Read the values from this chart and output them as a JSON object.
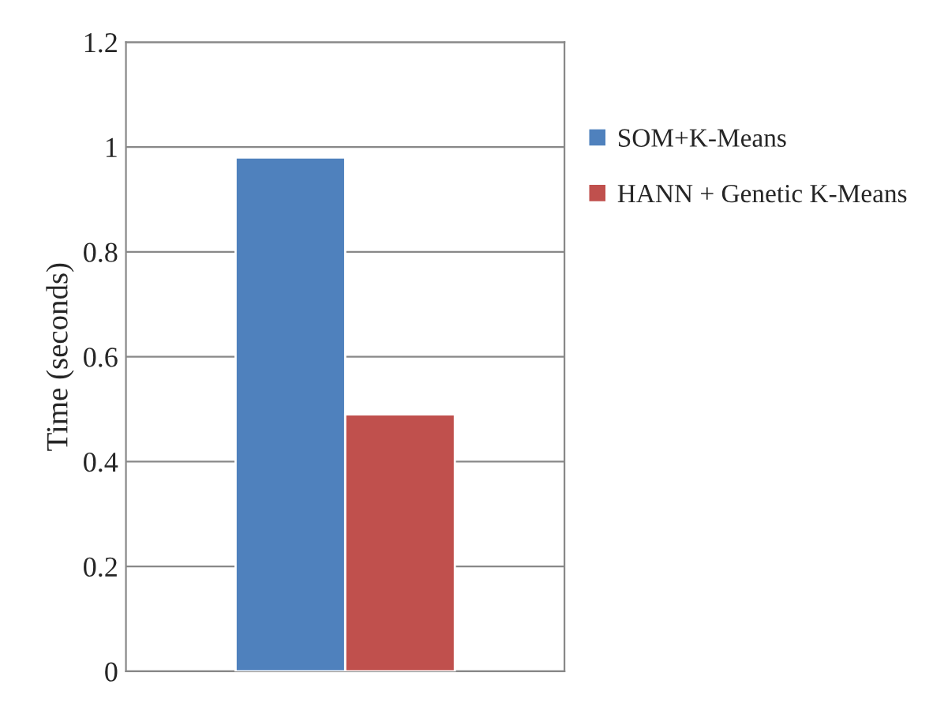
{
  "chart_data": {
    "type": "bar",
    "ylabel": "Time (seconds)",
    "categories": [
      null
    ],
    "series": [
      {
        "name": "SOM+K-Means",
        "color": "#4f81bd",
        "values": [
          0.98
        ]
      },
      {
        "name": "HANN + Genetic K-Means",
        "color": "#c0504d",
        "values": [
          0.49
        ]
      }
    ],
    "ylim": [
      0,
      1.2
    ],
    "yticks": [
      0,
      0.2,
      0.4,
      0.6,
      0.8,
      1,
      1.2
    ],
    "grid": "y",
    "legend": "right"
  }
}
